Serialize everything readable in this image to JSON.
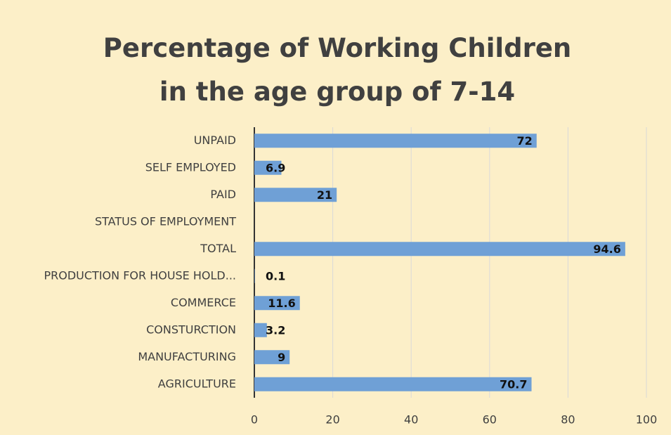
{
  "chart_data": {
    "type": "bar",
    "orientation": "horizontal",
    "title": "Percentage of Working Children in the age group of 7-14",
    "categories": [
      "UNPAID",
      "SELF EMPLOYED",
      "PAID",
      "STATUS OF EMPLOYMENT",
      "TOTAL",
      "PRODUCTION FOR HOUSE HOLD...",
      "COMMERCE",
      "CONSTURCTION",
      "MANUFACTURING",
      "AGRICULTURE"
    ],
    "values": [
      72,
      6.9,
      21,
      null,
      94.6,
      0.1,
      11.6,
      3.2,
      9,
      70.7
    ],
    "color": "#6fa0d6",
    "xlim": [
      0,
      100
    ],
    "xticks": [
      0,
      20,
      40,
      60,
      80,
      100
    ],
    "grid": true
  }
}
